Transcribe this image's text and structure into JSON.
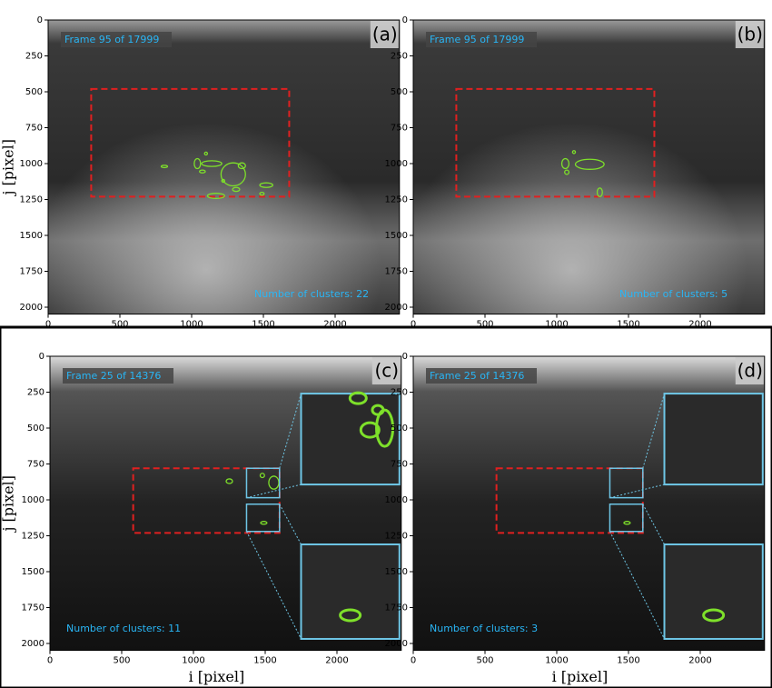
{
  "chart_data": [
    {
      "type": "image",
      "panel_label": "(a)",
      "frame_text": "Frame 95 of 17999",
      "clusters_text": "Number of clusters: 22",
      "ylabel": "j [pixel]",
      "xlim": [
        0,
        2448
      ],
      "ylim": [
        2048,
        0
      ],
      "xticks": [
        0,
        500,
        1000,
        1500,
        2000
      ],
      "yticks": [
        0,
        250,
        500,
        750,
        1000,
        1250,
        1500,
        1750,
        2000
      ]
    },
    {
      "type": "image",
      "panel_label": "(b)",
      "frame_text": "Frame 95 of 17999",
      "clusters_text": "Number of clusters: 5",
      "xlim": [
        0,
        2448
      ],
      "ylim": [
        2048,
        0
      ],
      "xticks": [
        0,
        500,
        1000,
        1500,
        2000
      ],
      "yticks": [
        0,
        250,
        500,
        750,
        1000,
        1250,
        1500,
        1750,
        2000
      ]
    },
    {
      "type": "image",
      "panel_label": "(c)",
      "frame_text": "Frame 25 of 14376",
      "clusters_text": "Number of clusters: 11",
      "ylabel": "j [pixel]",
      "xlabel": "i [pixel]",
      "xlim": [
        0,
        2448
      ],
      "ylim": [
        2048,
        0
      ],
      "xticks": [
        0,
        500,
        1000,
        1500,
        2000
      ],
      "yticks": [
        0,
        250,
        500,
        750,
        1000,
        1250,
        1500,
        1750,
        2000
      ]
    },
    {
      "type": "image",
      "panel_label": "(d)",
      "frame_text": "Frame 25 of 14376",
      "clusters_text": "Number of clusters: 3",
      "xlabel": "i [pixel]",
      "xlim": [
        0,
        2448
      ],
      "ylim": [
        2048,
        0
      ],
      "xticks": [
        0,
        500,
        1000,
        1500,
        2000
      ],
      "yticks": [
        0,
        250,
        500,
        750,
        1000,
        1250,
        1500,
        1750,
        2000
      ]
    }
  ]
}
